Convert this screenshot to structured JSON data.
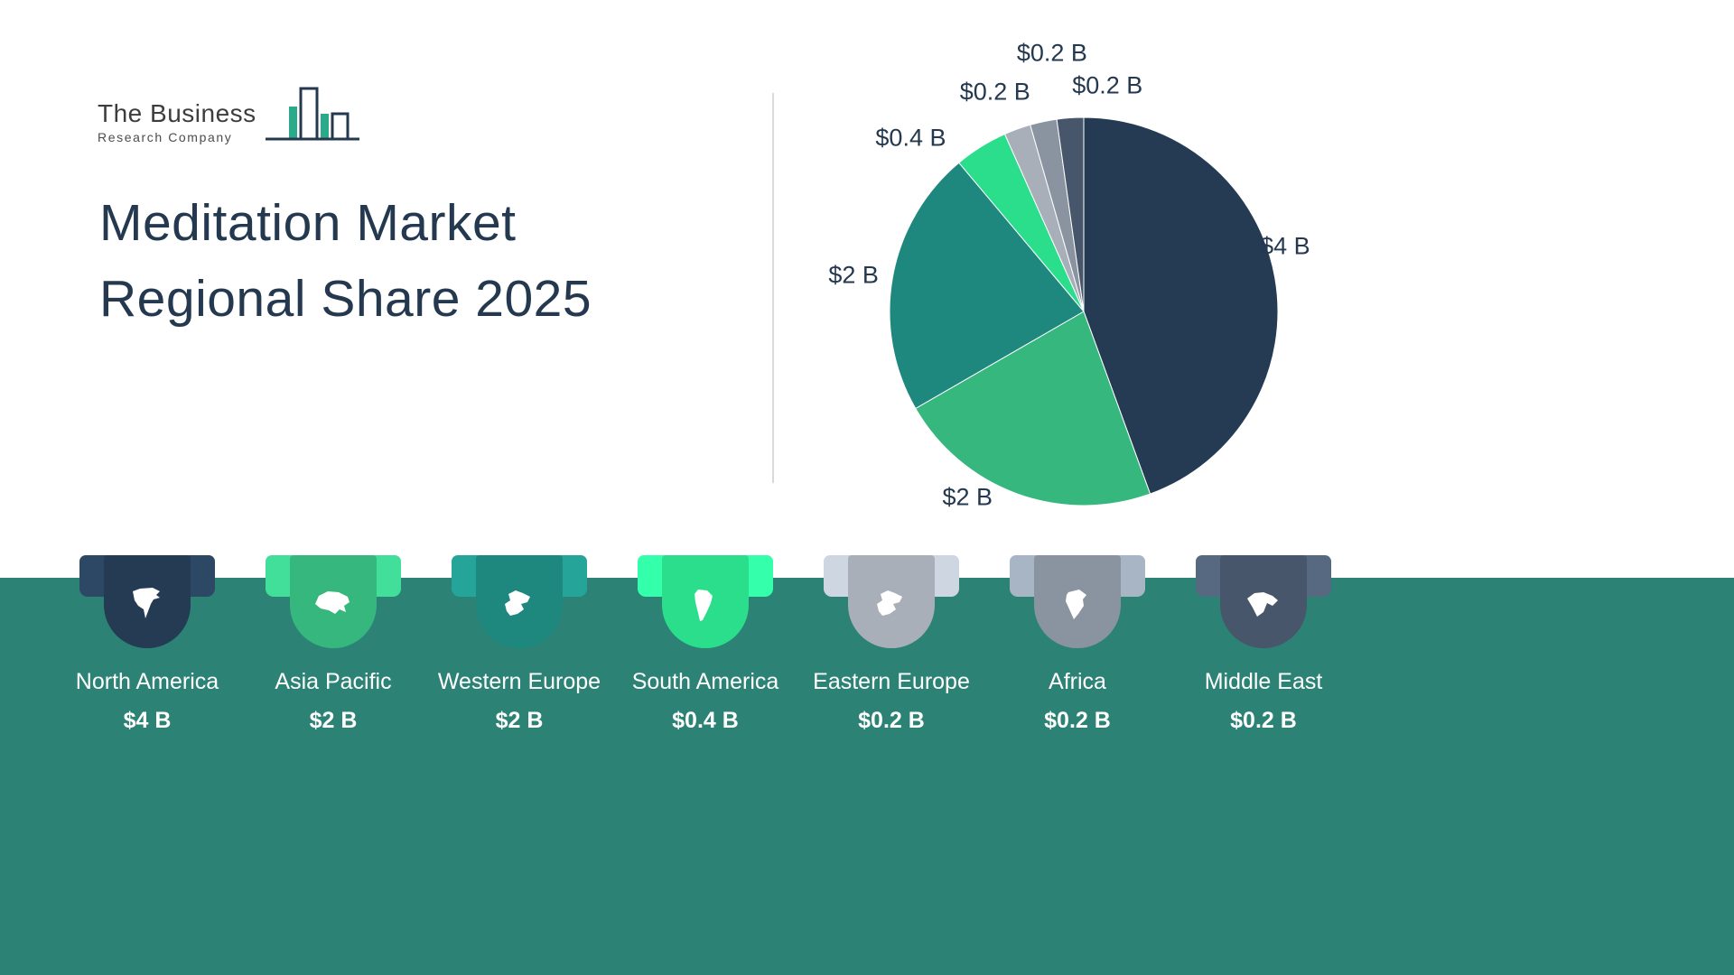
{
  "header": {
    "logo": {
      "line1": "The Business",
      "line2": "Research Company"
    },
    "title_line1": "Meditation Market",
    "title_line2": "Regional Share 2025"
  },
  "chart_data": {
    "type": "pie",
    "title": "Meditation Market Regional Share 2025",
    "unit": "USD billions",
    "start_angle_deg": 0,
    "direction": "clockwise",
    "legend_position": "bottom",
    "slices": [
      {
        "label": "North America",
        "value": 4,
        "display": "$4 B",
        "color": "#243B53",
        "label_angle": 72,
        "label_dist": 1.09
      },
      {
        "label": "Asia Pacific",
        "value": 2,
        "display": "$2 B",
        "color": "#36B77E",
        "label_angle": 212,
        "label_dist": 1.13
      },
      {
        "label": "Western Europe",
        "value": 2,
        "display": "$2 B",
        "color": "#1E877E",
        "label_angle": 279,
        "label_dist": 1.2
      },
      {
        "label": "South America",
        "value": 0.4,
        "display": "$0.4 B",
        "color": "#2BDE8B",
        "label_angle": 315,
        "label_dist": 1.26
      },
      {
        "label": "Eastern Europe",
        "value": 0.2,
        "display": "$0.2 B",
        "color": "#A9AFB9",
        "label_angle": 338,
        "label_dist": 1.22
      },
      {
        "label": "Africa",
        "value": 0.2,
        "display": "$0.2 B",
        "color": "#8A94A1",
        "label_angle": 353,
        "label_dist": 1.34
      },
      {
        "label": "Middle East",
        "value": 0.2,
        "display": "$0.2 B",
        "color": "#47566A",
        "label_angle": 6,
        "label_dist": 1.17
      }
    ]
  },
  "regions": [
    {
      "name": "North America",
      "value": "$4 B",
      "color": "#243B53",
      "icon": "north-america-icon"
    },
    {
      "name": "Asia Pacific",
      "value": "$2 B",
      "color": "#36B77E",
      "icon": "asia-pacific-icon"
    },
    {
      "name": "Western Europe",
      "value": "$2 B",
      "color": "#1E877E",
      "icon": "western-europe-icon"
    },
    {
      "name": "South America",
      "value": "$0.4 B",
      "color": "#2BDE8B",
      "icon": "south-america-icon"
    },
    {
      "name": "Eastern Europe",
      "value": "$0.2 B",
      "color": "#A9AFB9",
      "icon": "eastern-europe-icon"
    },
    {
      "name": "Africa",
      "value": "$0.2 B",
      "color": "#8A94A1",
      "icon": "africa-icon"
    },
    {
      "name": "Middle East",
      "value": "$0.2 B",
      "color": "#47566A",
      "icon": "middle-east-icon"
    }
  ],
  "colors": {
    "band": "#2C8375",
    "title": "#24394F",
    "pie_label_text": "#24394F",
    "divider": "#D9D9D9",
    "logo_accent": "#2BA98B",
    "logo_outline": "#24394F"
  }
}
